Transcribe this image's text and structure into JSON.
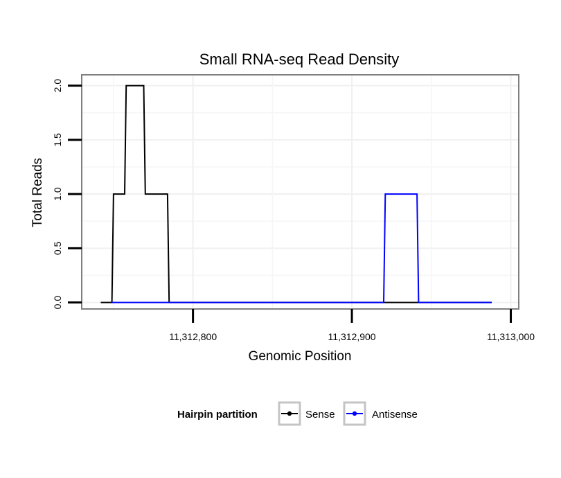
{
  "chart_data": {
    "type": "line",
    "title": "Small RNA-seq Read Density",
    "xlabel": "Genomic Position",
    "ylabel": "Total Reads",
    "xlim": [
      11312730,
      11313005
    ],
    "ylim": [
      -0.06,
      2.1
    ],
    "x_ticks": [
      11312800,
      11312900,
      11313000
    ],
    "x_tick_labels": [
      "11,312,800",
      "11,312,900",
      "11,313,000"
    ],
    "y_ticks": [
      0,
      0.5,
      1,
      1.5,
      2
    ],
    "y_tick_labels": [
      "0.0",
      "0.5",
      "1.0",
      "1.5",
      "2.0"
    ],
    "grid": true,
    "legend_title": "Hairpin partition",
    "legend_position": "bottom",
    "series": [
      {
        "name": "Sense",
        "color": "#000000",
        "x": [
          11312742,
          11312749,
          11312750,
          11312757,
          11312758,
          11312769,
          11312770,
          11312784,
          11312785,
          11312988
        ],
        "y": [
          0,
          0,
          1,
          1,
          2,
          2,
          1,
          1,
          0,
          0
        ]
      },
      {
        "name": "Antisense",
        "color": "#0000ff",
        "x": [
          11312749,
          11312784,
          11312920,
          11312921,
          11312941,
          11312942,
          11312988
        ],
        "y": [
          0,
          0,
          0,
          1,
          1,
          0,
          0
        ]
      }
    ]
  }
}
